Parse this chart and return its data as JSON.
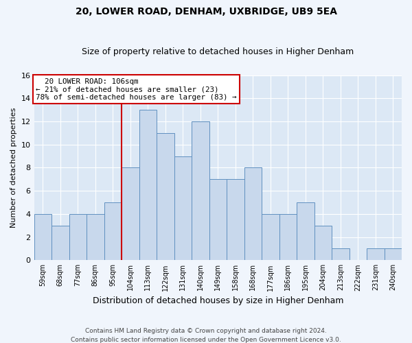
{
  "title1": "20, LOWER ROAD, DENHAM, UXBRIDGE, UB9 5EA",
  "title2": "Size of property relative to detached houses in Higher Denham",
  "xlabel": "Distribution of detached houses by size in Higher Denham",
  "ylabel": "Number of detached properties",
  "footnote1": "Contains HM Land Registry data © Crown copyright and database right 2024.",
  "footnote2": "Contains public sector information licensed under the Open Government Licence v3.0.",
  "categories": [
    "59sqm",
    "68sqm",
    "77sqm",
    "86sqm",
    "95sqm",
    "104sqm",
    "113sqm",
    "122sqm",
    "131sqm",
    "140sqm",
    "149sqm",
    "158sqm",
    "168sqm",
    "177sqm",
    "186sqm",
    "195sqm",
    "204sqm",
    "213sqm",
    "222sqm",
    "231sqm",
    "240sqm"
  ],
  "values": [
    4,
    3,
    4,
    4,
    5,
    8,
    13,
    11,
    9,
    12,
    7,
    7,
    8,
    4,
    4,
    5,
    3,
    1,
    0,
    1,
    1
  ],
  "bar_color": "#c8d8ec",
  "bar_edge_color": "#6090c0",
  "background_color": "#dce8f5",
  "fig_background_color": "#f0f5fc",
  "grid_color": "#ffffff",
  "annotation_box_text": "  20 LOWER ROAD: 106sqm\n← 21% of detached houses are smaller (23)\n78% of semi-detached houses are larger (83) →",
  "annotation_box_color": "#cc0000",
  "redline_index": 5,
  "ylim": [
    0,
    16
  ],
  "yticks": [
    0,
    2,
    4,
    6,
    8,
    10,
    12,
    14,
    16
  ]
}
